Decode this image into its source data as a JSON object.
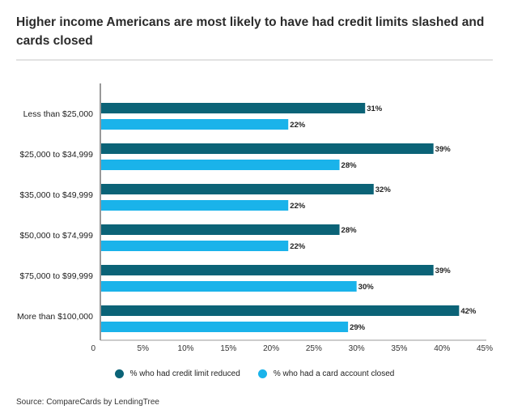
{
  "title": "Higher income Americans are most likely to have had credit limits slashed and cards closed",
  "source": "Source: CompareCards by LendingTree",
  "chart_data": {
    "type": "bar",
    "orientation": "horizontal",
    "categories": [
      "Less than $25,000",
      "$25,000 to $34,999",
      "$35,000 to $49,999",
      "$50,000 to $74,999",
      "$75,000 to $99,999",
      "More than $100,000"
    ],
    "series": [
      {
        "name": "% who had credit limit reduced",
        "color": "#0b6377",
        "values": [
          31,
          39,
          32,
          28,
          39,
          42
        ],
        "labels": [
          "31%",
          "39%",
          "32%",
          "28%",
          "39%",
          "42%"
        ]
      },
      {
        "name": "% who had a card account closed",
        "color": "#1ab3ea",
        "values": [
          22,
          28,
          22,
          22,
          30,
          29
        ],
        "labels": [
          "22%",
          "28%",
          "22%",
          "22%",
          "30%",
          "29%"
        ]
      }
    ],
    "xlim": [
      0,
      45
    ],
    "xticks": [
      0,
      5,
      10,
      15,
      20,
      25,
      30,
      35,
      40,
      45
    ],
    "xtick_labels": [
      "0",
      "5%",
      "10%",
      "15%",
      "20%",
      "25%",
      "30%",
      "35%",
      "40%",
      "45%"
    ],
    "grid": false,
    "legend_position": "bottom-center"
  }
}
